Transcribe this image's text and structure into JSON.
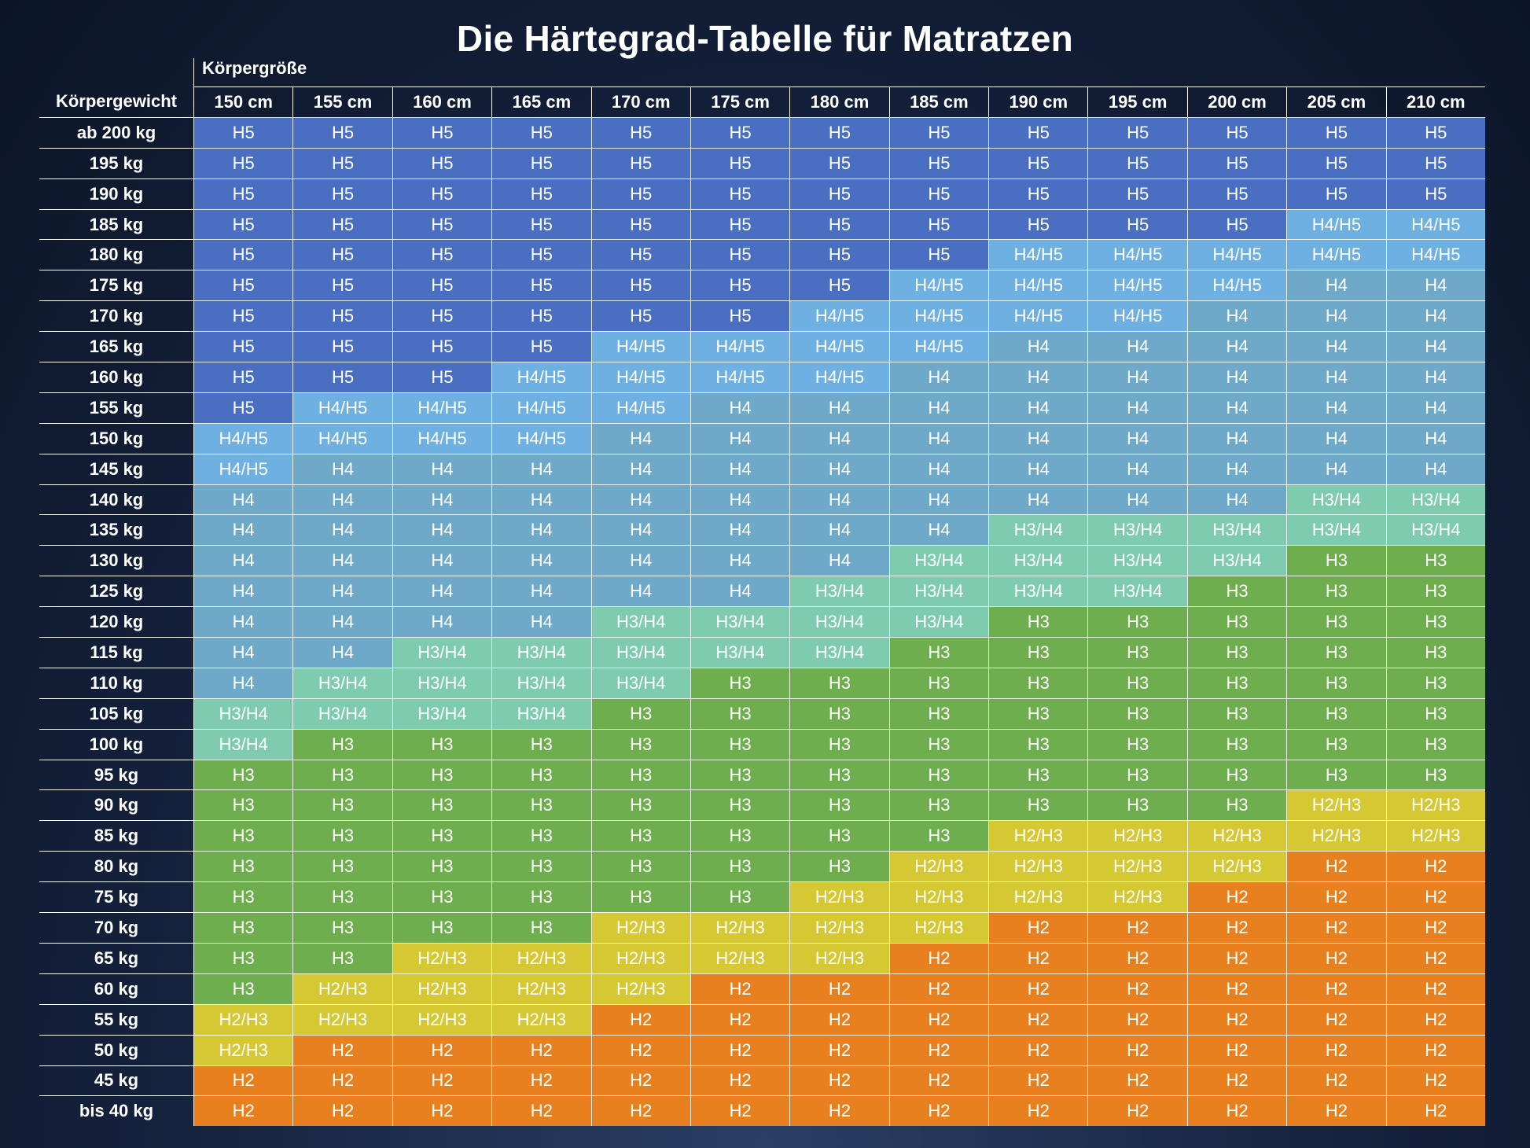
{
  "title": "Die Härtegrad-Tabelle für Matratzen",
  "header": {
    "column_group": "Körpergröße",
    "row_group": "Körpergewicht"
  },
  "columns": [
    "150 cm",
    "155 cm",
    "160 cm",
    "165 cm",
    "170 cm",
    "175 cm",
    "180 cm",
    "185 cm",
    "190 cm",
    "195 cm",
    "200 cm",
    "205 cm",
    "210 cm"
  ],
  "cell_colors": {
    "H5": "#4a6fc2",
    "H4/H5": "#6eb0e2",
    "H4": "#6fa9c9",
    "H3/H4": "#7ecbb0",
    "H3": "#6fae4f",
    "H2/H3": "#d6c832",
    "H2": "#e8801f"
  },
  "rows": [
    {
      "label": "ab 200 kg",
      "cells": [
        "H5",
        "H5",
        "H5",
        "H5",
        "H5",
        "H5",
        "H5",
        "H5",
        "H5",
        "H5",
        "H5",
        "H5",
        "H5"
      ]
    },
    {
      "label": "195 kg",
      "cells": [
        "H5",
        "H5",
        "H5",
        "H5",
        "H5",
        "H5",
        "H5",
        "H5",
        "H5",
        "H5",
        "H5",
        "H5",
        "H5"
      ]
    },
    {
      "label": "190 kg",
      "cells": [
        "H5",
        "H5",
        "H5",
        "H5",
        "H5",
        "H5",
        "H5",
        "H5",
        "H5",
        "H5",
        "H5",
        "H5",
        "H5"
      ]
    },
    {
      "label": "185 kg",
      "cells": [
        "H5",
        "H5",
        "H5",
        "H5",
        "H5",
        "H5",
        "H5",
        "H5",
        "H5",
        "H5",
        "H5",
        "H4/H5",
        "H4/H5"
      ]
    },
    {
      "label": "180 kg",
      "cells": [
        "H5",
        "H5",
        "H5",
        "H5",
        "H5",
        "H5",
        "H5",
        "H5",
        "H4/H5",
        "H4/H5",
        "H4/H5",
        "H4/H5",
        "H4/H5"
      ]
    },
    {
      "label": "175 kg",
      "cells": [
        "H5",
        "H5",
        "H5",
        "H5",
        "H5",
        "H5",
        "H5",
        "H4/H5",
        "H4/H5",
        "H4/H5",
        "H4/H5",
        "H4",
        "H4"
      ]
    },
    {
      "label": "170 kg",
      "cells": [
        "H5",
        "H5",
        "H5",
        "H5",
        "H5",
        "H5",
        "H4/H5",
        "H4/H5",
        "H4/H5",
        "H4/H5",
        "H4",
        "H4",
        "H4"
      ]
    },
    {
      "label": "165 kg",
      "cells": [
        "H5",
        "H5",
        "H5",
        "H5",
        "H4/H5",
        "H4/H5",
        "H4/H5",
        "H4/H5",
        "H4",
        "H4",
        "H4",
        "H4",
        "H4"
      ]
    },
    {
      "label": "160 kg",
      "cells": [
        "H5",
        "H5",
        "H5",
        "H4/H5",
        "H4/H5",
        "H4/H5",
        "H4/H5",
        "H4",
        "H4",
        "H4",
        "H4",
        "H4",
        "H4"
      ]
    },
    {
      "label": "155 kg",
      "cells": [
        "H5",
        "H4/H5",
        "H4/H5",
        "H4/H5",
        "H4/H5",
        "H4",
        "H4",
        "H4",
        "H4",
        "H4",
        "H4",
        "H4",
        "H4"
      ]
    },
    {
      "label": "150 kg",
      "cells": [
        "H4/H5",
        "H4/H5",
        "H4/H5",
        "H4/H5",
        "H4",
        "H4",
        "H4",
        "H4",
        "H4",
        "H4",
        "H4",
        "H4",
        "H4"
      ]
    },
    {
      "label": "145 kg",
      "cells": [
        "H4/H5",
        "H4",
        "H4",
        "H4",
        "H4",
        "H4",
        "H4",
        "H4",
        "H4",
        "H4",
        "H4",
        "H4",
        "H4"
      ]
    },
    {
      "label": "140 kg",
      "cells": [
        "H4",
        "H4",
        "H4",
        "H4",
        "H4",
        "H4",
        "H4",
        "H4",
        "H4",
        "H4",
        "H4",
        "H3/H4",
        "H3/H4"
      ]
    },
    {
      "label": "135 kg",
      "cells": [
        "H4",
        "H4",
        "H4",
        "H4",
        "H4",
        "H4",
        "H4",
        "H4",
        "H3/H4",
        "H3/H4",
        "H3/H4",
        "H3/H4",
        "H3/H4"
      ]
    },
    {
      "label": "130 kg",
      "cells": [
        "H4",
        "H4",
        "H4",
        "H4",
        "H4",
        "H4",
        "H4",
        "H3/H4",
        "H3/H4",
        "H3/H4",
        "H3/H4",
        "H3",
        "H3"
      ]
    },
    {
      "label": "125 kg",
      "cells": [
        "H4",
        "H4",
        "H4",
        "H4",
        "H4",
        "H4",
        "H3/H4",
        "H3/H4",
        "H3/H4",
        "H3/H4",
        "H3",
        "H3",
        "H3"
      ]
    },
    {
      "label": "120 kg",
      "cells": [
        "H4",
        "H4",
        "H4",
        "H4",
        "H3/H4",
        "H3/H4",
        "H3/H4",
        "H3/H4",
        "H3",
        "H3",
        "H3",
        "H3",
        "H3"
      ]
    },
    {
      "label": "115 kg",
      "cells": [
        "H4",
        "H4",
        "H3/H4",
        "H3/H4",
        "H3/H4",
        "H3/H4",
        "H3/H4",
        "H3",
        "H3",
        "H3",
        "H3",
        "H3",
        "H3"
      ]
    },
    {
      "label": "110 kg",
      "cells": [
        "H4",
        "H3/H4",
        "H3/H4",
        "H3/H4",
        "H3/H4",
        "H3",
        "H3",
        "H3",
        "H3",
        "H3",
        "H3",
        "H3",
        "H3"
      ]
    },
    {
      "label": "105 kg",
      "cells": [
        "H3/H4",
        "H3/H4",
        "H3/H4",
        "H3/H4",
        "H3",
        "H3",
        "H3",
        "H3",
        "H3",
        "H3",
        "H3",
        "H3",
        "H3"
      ]
    },
    {
      "label": "100 kg",
      "cells": [
        "H3/H4",
        "H3",
        "H3",
        "H3",
        "H3",
        "H3",
        "H3",
        "H3",
        "H3",
        "H3",
        "H3",
        "H3",
        "H3"
      ]
    },
    {
      "label": "95 kg",
      "cells": [
        "H3",
        "H3",
        "H3",
        "H3",
        "H3",
        "H3",
        "H3",
        "H3",
        "H3",
        "H3",
        "H3",
        "H3",
        "H3"
      ]
    },
    {
      "label": "90 kg",
      "cells": [
        "H3",
        "H3",
        "H3",
        "H3",
        "H3",
        "H3",
        "H3",
        "H3",
        "H3",
        "H3",
        "H3",
        "H2/H3",
        "H2/H3"
      ]
    },
    {
      "label": "85 kg",
      "cells": [
        "H3",
        "H3",
        "H3",
        "H3",
        "H3",
        "H3",
        "H3",
        "H3",
        "H2/H3",
        "H2/H3",
        "H2/H3",
        "H2/H3",
        "H2/H3"
      ]
    },
    {
      "label": "80 kg",
      "cells": [
        "H3",
        "H3",
        "H3",
        "H3",
        "H3",
        "H3",
        "H3",
        "H2/H3",
        "H2/H3",
        "H2/H3",
        "H2/H3",
        "H2",
        "H2"
      ]
    },
    {
      "label": "75 kg",
      "cells": [
        "H3",
        "H3",
        "H3",
        "H3",
        "H3",
        "H3",
        "H2/H3",
        "H2/H3",
        "H2/H3",
        "H2/H3",
        "H2",
        "H2",
        "H2"
      ]
    },
    {
      "label": "70 kg",
      "cells": [
        "H3",
        "H3",
        "H3",
        "H3",
        "H2/H3",
        "H2/H3",
        "H2/H3",
        "H2/H3",
        "H2",
        "H2",
        "H2",
        "H2",
        "H2"
      ]
    },
    {
      "label": "65 kg",
      "cells": [
        "H3",
        "H3",
        "H2/H3",
        "H2/H3",
        "H2/H3",
        "H2/H3",
        "H2/H3",
        "H2",
        "H2",
        "H2",
        "H2",
        "H2",
        "H2"
      ]
    },
    {
      "label": "60 kg",
      "cells": [
        "H3",
        "H2/H3",
        "H2/H3",
        "H2/H3",
        "H2/H3",
        "H2",
        "H2",
        "H2",
        "H2",
        "H2",
        "H2",
        "H2",
        "H2"
      ]
    },
    {
      "label": "55 kg",
      "cells": [
        "H2/H3",
        "H2/H3",
        "H2/H3",
        "H2/H3",
        "H2",
        "H2",
        "H2",
        "H2",
        "H2",
        "H2",
        "H2",
        "H2",
        "H2"
      ]
    },
    {
      "label": "50 kg",
      "cells": [
        "H2/H3",
        "H2",
        "H2",
        "H2",
        "H2",
        "H2",
        "H2",
        "H2",
        "H2",
        "H2",
        "H2",
        "H2",
        "H2"
      ]
    },
    {
      "label": "45 kg",
      "cells": [
        "H2",
        "H2",
        "H2",
        "H2",
        "H2",
        "H2",
        "H2",
        "H2",
        "H2",
        "H2",
        "H2",
        "H2",
        "H2"
      ]
    },
    {
      "label": "bis 40 kg",
      "cells": [
        "H2",
        "H2",
        "H2",
        "H2",
        "H2",
        "H2",
        "H2",
        "H2",
        "H2",
        "H2",
        "H2",
        "H2",
        "H2"
      ]
    }
  ]
}
